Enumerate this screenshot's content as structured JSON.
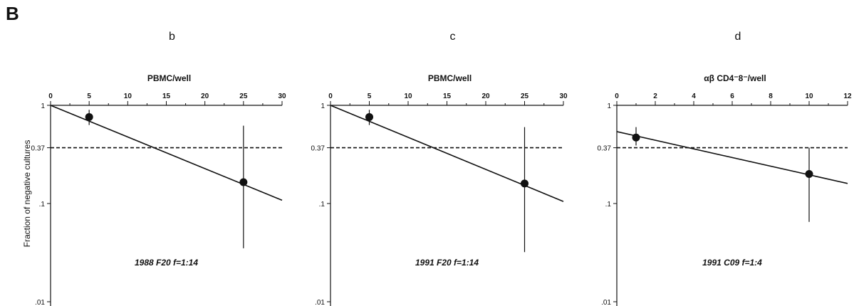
{
  "figure": {
    "panel_letter": "B",
    "shared_ylabel": "Fraction of negative cultures"
  },
  "chart_data": [
    {
      "type": "line",
      "subpanel": "b",
      "xlabel": "PBMC/well",
      "xlim": [
        0,
        30
      ],
      "x_ticks": [
        0,
        5,
        10,
        15,
        20,
        25,
        30
      ],
      "ylabel": "Fraction of negative cultures",
      "y_scale": "log",
      "ylim": [
        0.01,
        1
      ],
      "y_ticks": [
        1,
        0.37,
        0.1,
        0.01
      ],
      "y_tick_labels": [
        "1",
        "0.37",
        ".1",
        ".01"
      ],
      "reference_line": {
        "y": 0.37,
        "style": "dashed"
      },
      "points": [
        {
          "x": 5,
          "y": 0.76,
          "err_low": 0.63,
          "err_high": 0.9
        },
        {
          "x": 25,
          "y": 0.165,
          "err_low": 0.035,
          "err_high": 0.62
        }
      ],
      "fit_line": {
        "x": [
          0,
          30
        ],
        "y": [
          1.0,
          0.108
        ]
      },
      "annotation": "1988 F20 f=1:14",
      "grid": false
    },
    {
      "type": "line",
      "subpanel": "c",
      "xlabel": "PBMC/well",
      "xlim": [
        0,
        30
      ],
      "x_ticks": [
        0,
        5,
        10,
        15,
        20,
        25,
        30
      ],
      "ylabel": "Fraction of negative cultures",
      "y_scale": "log",
      "ylim": [
        0.01,
        1
      ],
      "y_ticks": [
        1,
        0.37,
        0.1,
        0.01
      ],
      "y_tick_labels": [
        "1",
        "0.37",
        ".1",
        ".01"
      ],
      "reference_line": {
        "y": 0.37,
        "style": "dashed"
      },
      "points": [
        {
          "x": 5,
          "y": 0.76,
          "err_low": 0.63,
          "err_high": 0.9
        },
        {
          "x": 25,
          "y": 0.16,
          "err_low": 0.032,
          "err_high": 0.6
        }
      ],
      "fit_line": {
        "x": [
          0,
          30
        ],
        "y": [
          1.0,
          0.105
        ]
      },
      "annotation": "1991 F20 f=1:14",
      "grid": false
    },
    {
      "type": "line",
      "subpanel": "d",
      "xlabel": "αβ  CD4⁻8⁻/well",
      "xlim": [
        0,
        12
      ],
      "x_ticks": [
        0,
        2,
        4,
        6,
        8,
        10,
        12
      ],
      "ylabel": "Fraction of negative cultures",
      "y_scale": "log",
      "ylim": [
        0.01,
        1
      ],
      "y_ticks": [
        1,
        0.37,
        0.1,
        0.01
      ],
      "y_tick_labels": [
        "1",
        "0.37",
        ".1",
        ".01"
      ],
      "reference_line": {
        "y": 0.37,
        "style": "dashed"
      },
      "points": [
        {
          "x": 1,
          "y": 0.47,
          "err_low": 0.39,
          "err_high": 0.6
        },
        {
          "x": 10,
          "y": 0.2,
          "err_low": 0.065,
          "err_high": 0.37
        }
      ],
      "fit_line": {
        "x": [
          0,
          12
        ],
        "y": [
          0.54,
          0.16
        ]
      },
      "annotation": "1991 C09 f=1:4",
      "grid": false
    }
  ]
}
